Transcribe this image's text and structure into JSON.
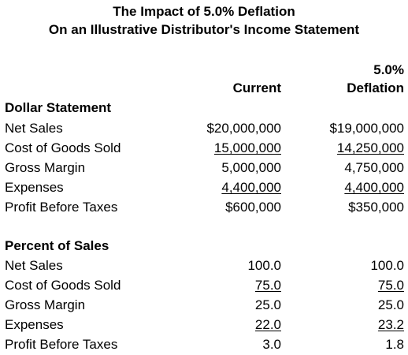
{
  "title": {
    "line1": "The Impact of 5.0% Deflation",
    "line2": "On an Illustrative Distributor's Income Statement"
  },
  "columns": {
    "current": "Current",
    "deflation_line1": "5.0%",
    "deflation_line2": "Deflation"
  },
  "dollar_statement": {
    "heading": "Dollar Statement",
    "rows": [
      {
        "label": "Net Sales",
        "current": "$20,000,000",
        "deflation": "$19,000,000"
      },
      {
        "label": "Cost of Goods Sold",
        "current": "15,000,000",
        "deflation": "14,250,000"
      },
      {
        "label": "Gross Margin",
        "current": "5,000,000",
        "deflation": "4,750,000"
      },
      {
        "label": "Expenses",
        "current": "4,400,000",
        "deflation": "4,400,000"
      },
      {
        "label": "Profit Before Taxes",
        "current": "$600,000",
        "deflation": "$350,000"
      }
    ]
  },
  "percent_of_sales": {
    "heading": "Percent of Sales",
    "rows": [
      {
        "label": "Net Sales",
        "current": "100.0",
        "deflation": "100.0"
      },
      {
        "label": "Cost of Goods Sold",
        "current": "75.0",
        "deflation": "75.0"
      },
      {
        "label": "Gross Margin",
        "current": "25.0",
        "deflation": "25.0"
      },
      {
        "label": "Expenses",
        "current": "22.0",
        "deflation": "23.2"
      },
      {
        "label": "Profit Before Taxes",
        "current": "3.0",
        "deflation": "1.8"
      }
    ]
  }
}
